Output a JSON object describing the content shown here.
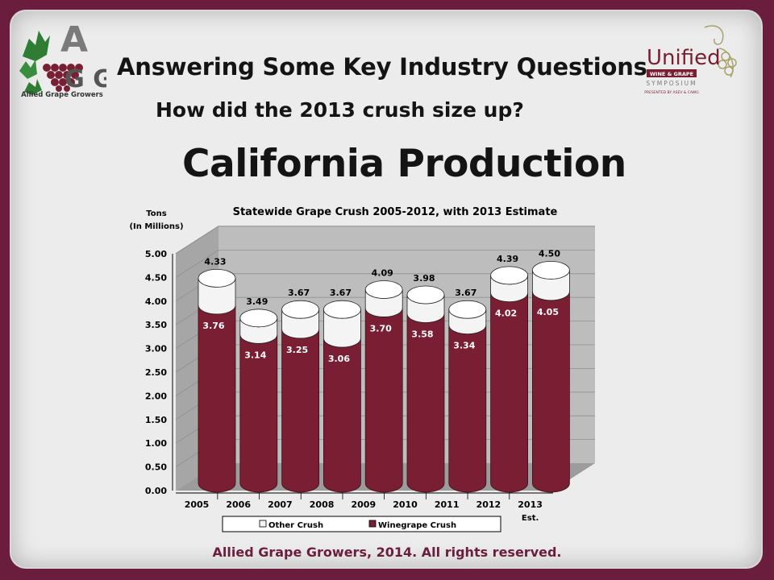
{
  "slide": {
    "heading": "Answering Some Key Industry Questions",
    "subheading": "How did the 2013 crush size up?",
    "main_title": "California Production",
    "footer": "Allied Grape Growers, 2014.  All rights reserved."
  },
  "logos": {
    "left": {
      "icon": "allied-grape-growers-logo",
      "line1": "A",
      "line2": "G G",
      "caption": "Allied Grape Growers"
    },
    "right": {
      "icon": "unified-symposium-logo",
      "title": "Unified",
      "band": "WINE & GRAPE",
      "sub": "SYMPOSIUM",
      "tagline": "PRESENTED BY ASEV & CAWG"
    }
  },
  "colors": {
    "frame": "#6b1d3d",
    "winegrape": "#7a1f33",
    "other": "#f4f4f4",
    "wall": "#bdbdbd",
    "floor": "#9c9c9c"
  },
  "chart_data": {
    "type": "bar",
    "stacked": true,
    "title": "Statewide Grape Crush 2005-2012, with 2013 Estimate",
    "ylabel_line1": "Tons",
    "ylabel_line2": "(In Millions)",
    "ylim": [
      0,
      5
    ],
    "yticks": [
      "0.00",
      "0.50",
      "1.00",
      "1.50",
      "2.00",
      "2.50",
      "3.00",
      "3.50",
      "4.00",
      "4.50",
      "5.00"
    ],
    "categories": [
      "2005",
      "2006",
      "2007",
      "2008",
      "2009",
      "2010",
      "2011",
      "2012",
      "2013"
    ],
    "category_note": {
      "index": 8,
      "text": "Est."
    },
    "totals": [
      4.33,
      3.49,
      3.67,
      3.67,
      4.09,
      3.98,
      3.67,
      4.39,
      4.5
    ],
    "total_labels": [
      "4.33",
      "3.49",
      "3.67",
      "3.67",
      "4.09",
      "3.98",
      "3.67",
      "4.39",
      "4.50"
    ],
    "series": [
      {
        "name": "Winegrape Crush",
        "values": [
          3.76,
          3.14,
          3.25,
          3.06,
          3.7,
          3.58,
          3.34,
          4.02,
          4.05
        ],
        "labels": [
          "3.76",
          "3.14",
          "3.25",
          "3.06",
          "3.70",
          "3.58",
          "3.34",
          "4.02",
          "4.05"
        ]
      },
      {
        "name": "Other Crush",
        "values": [
          0.57,
          0.35,
          0.42,
          0.61,
          0.39,
          0.4,
          0.33,
          0.37,
          0.45
        ]
      }
    ],
    "legend": [
      "Other Crush",
      "Winegrape Crush"
    ],
    "legend_position": "bottom",
    "grid": true
  }
}
